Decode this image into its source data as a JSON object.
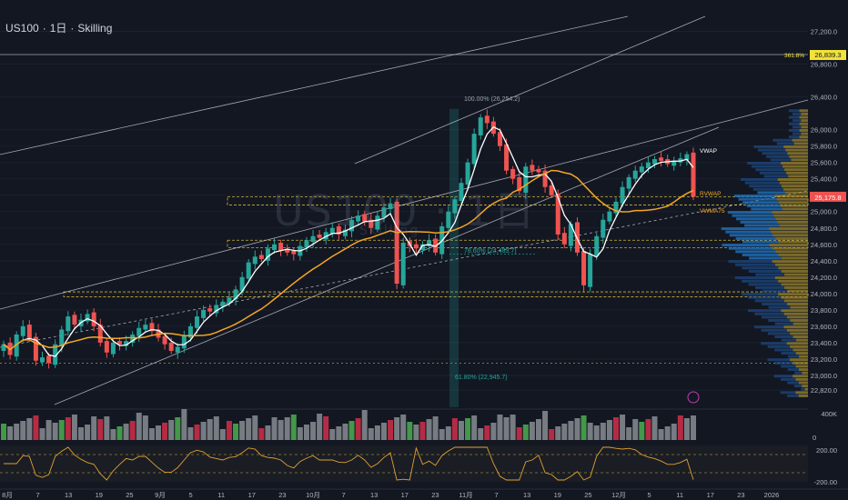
{
  "header": {
    "symbol": "US100",
    "sep1": "·",
    "interval": "1日",
    "sep2": "·",
    "broker": "Skilling"
  },
  "watermark": {
    "main": "US100 · 1日",
    "sub": "Skilling"
  },
  "colors": {
    "up": "#26a69a",
    "down": "#ef5350",
    "vwap": "#ffffff",
    "avwap": "#f5a623",
    "bg": "#131722",
    "grid": "#1e2230",
    "volUp": "#4caf50",
    "volDown": "#d32f4a"
  },
  "chart_data": {
    "type": "candlestick",
    "ylim": [
      22700,
      27250
    ],
    "yticks": [
      "27,200.0",
      "26,800.0",
      "26,400.0",
      "26,000.0",
      "25,800.0",
      "25,600.0",
      "25,400.0",
      "25,200.0",
      "25,000.0",
      "24,800.0",
      "24,600.0",
      "24,400.0",
      "24,200.0",
      "24,000.0",
      "23,800.0",
      "23,600.0",
      "23,400.0",
      "23,200.0",
      "23,000.0",
      "22,820.0"
    ],
    "ytick_values": [
      27200,
      26800,
      26400,
      26000,
      25800,
      25600,
      25400,
      25200,
      25000,
      24800,
      24600,
      24400,
      24200,
      24000,
      23800,
      23600,
      23400,
      23200,
      23000,
      22820
    ],
    "xticks": [
      "8月",
      "7",
      "13",
      "19",
      "25",
      "9月",
      "5",
      "11",
      "17",
      "23",
      "10月",
      "7",
      "13",
      "17",
      "23",
      "11月",
      "7",
      "13",
      "19",
      "25",
      "12月",
      "5",
      "11",
      "17",
      "23",
      "2026"
    ],
    "last_price": "25,175.8",
    "fib_badge": {
      "label": "361.8%",
      "price": "26,839.3"
    },
    "fib_labels": [
      "100.00% (26,254.2)",
      "78.60% (24,483.7)",
      "61.80% (22,945.7)"
    ],
    "line_labels": {
      "vwap": "VWAP",
      "avwap": "RVWAP",
      "vwma": "VWMA75"
    },
    "close": [
      23380,
      23250,
      23500,
      23600,
      23450,
      23180,
      23220,
      23150,
      23380,
      23560,
      23720,
      23620,
      23680,
      23750,
      23600,
      23400,
      23280,
      23400,
      23380,
      23420,
      23500,
      23580,
      23620,
      23540,
      23460,
      23380,
      23300,
      23350,
      23480,
      23600,
      23720,
      23800,
      23780,
      23860,
      23900,
      23950,
      24050,
      24200,
      24380,
      24450,
      24420,
      24550,
      24600,
      24520,
      24500,
      24480,
      24580,
      24650,
      24700,
      24680,
      24750,
      24800,
      24720,
      24780,
      24900,
      24950,
      24880,
      24800,
      24950,
      25050,
      25100,
      24120,
      24620,
      24580,
      24550,
      24600,
      24650,
      24500,
      24820,
      25000,
      25150,
      25350,
      25600,
      25950,
      26150,
      26080,
      25950,
      25800,
      25500,
      25400,
      25250,
      25550,
      25500,
      25480,
      25300,
      25200,
      24720,
      24600,
      24850,
      24500,
      24100,
      24480,
      24700,
      24900,
      25000,
      25120,
      25300,
      25420,
      25500,
      25550,
      25600,
      25640,
      25620,
      25580,
      25620,
      25650,
      25700,
      25180
    ],
    "volume_label": "400K",
    "volume_zero": "0",
    "osc_ticks": [
      "200.00",
      "-200.00"
    ]
  }
}
